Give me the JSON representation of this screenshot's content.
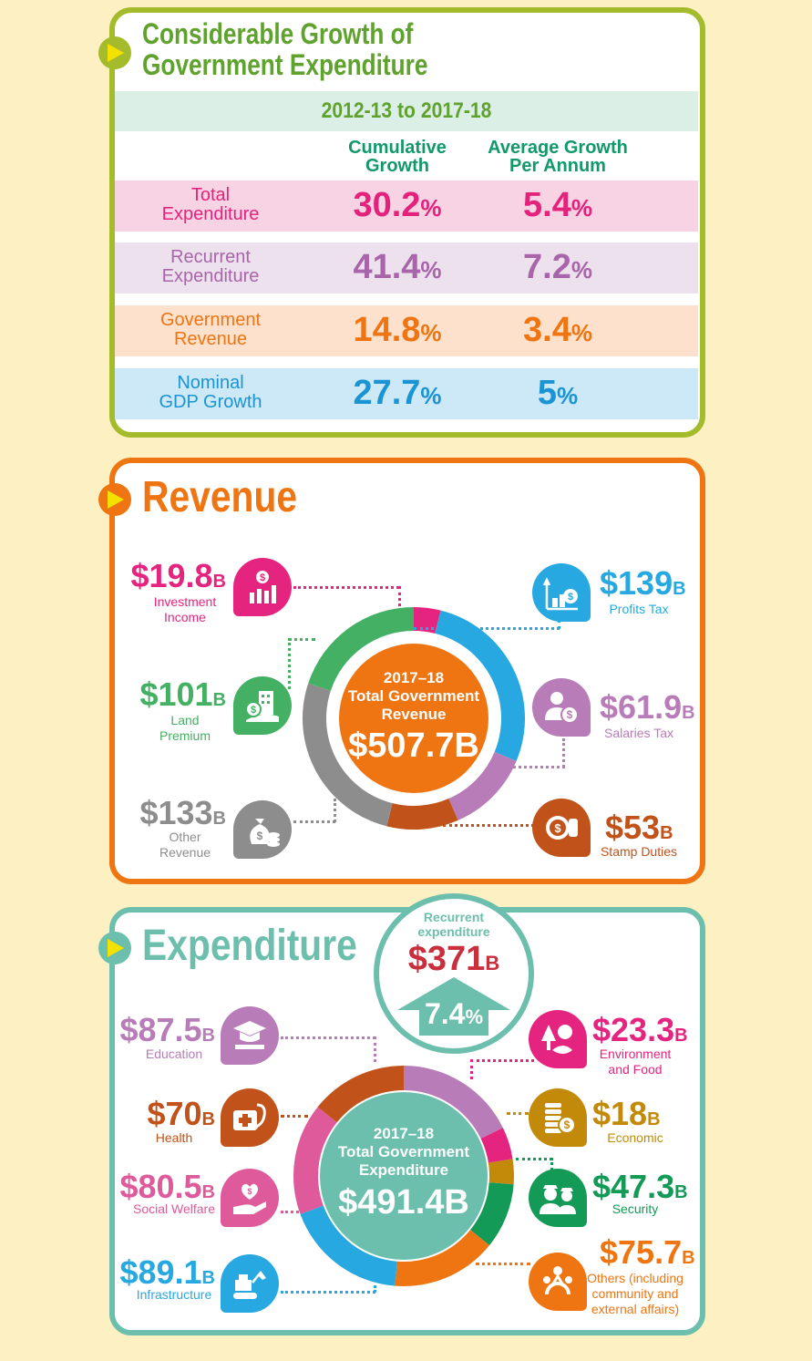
{
  "growth": {
    "title_line1": "Considerable Growth of",
    "title_line2": "Government Expenditure",
    "period": "2012-13 to 2017-18",
    "col1_line1": "Cumulative",
    "col1_line2": "Growth",
    "col2_line1": "Average Growth",
    "col2_line2": "Per Annum",
    "rows": [
      {
        "label1": "Total",
        "label2": "Expenditure",
        "cumulative": "30.2",
        "average": "5.4",
        "color": "#e3227c",
        "bg": "#f8d3e4"
      },
      {
        "label1": "Recurrent",
        "label2": "Expenditure",
        "cumulative": "41.4",
        "average": "7.2",
        "color": "#a865a9",
        "bg": "#ede1ee"
      },
      {
        "label1": "Government",
        "label2": "Revenue",
        "cumulative": "14.8",
        "average": "3.4",
        "color": "#ee7512",
        "bg": "#fde1cc"
      },
      {
        "label1": "Nominal",
        "label2": "GDP Growth",
        "cumulative": "27.7",
        "average": "5",
        "color": "#1a94d2",
        "bg": "#cde8f6"
      }
    ],
    "pct": "%"
  },
  "revenue": {
    "title": "Revenue",
    "center_line1": "2017–18",
    "center_line2": "Total Government",
    "center_line3": "Revenue",
    "center_total": "$507.7B",
    "items": [
      {
        "amount": "$19.8",
        "unit": "B",
        "label1": "Investment",
        "label2": "Income",
        "icon": "investment-icon",
        "color": "#e5247f"
      },
      {
        "amount": "$139",
        "unit": "B",
        "label1": "Profits Tax",
        "label2": "",
        "icon": "profits-tax-icon",
        "color": "#27a8e0"
      },
      {
        "amount": "$101",
        "unit": "B",
        "label1": "Land",
        "label2": "Premium",
        "icon": "land-premium-icon",
        "color": "#44b063"
      },
      {
        "amount": "$61.9",
        "unit": "B",
        "label1": "Salaries Tax",
        "label2": "",
        "icon": "salaries-tax-icon",
        "color": "#b87db8"
      },
      {
        "amount": "$133",
        "unit": "B",
        "label1": "Other",
        "label2": "Revenue",
        "icon": "money-bag-icon",
        "color": "#8d8d8d"
      },
      {
        "amount": "$53",
        "unit": "B",
        "label1": "Stamp Duties",
        "label2": "",
        "icon": "stamp-icon",
        "color": "#c1521a"
      }
    ]
  },
  "expenditure": {
    "title": "Expenditure",
    "recurrent_label1": "Recurrent",
    "recurrent_label2": "expenditure",
    "recurrent_amount": "$371",
    "recurrent_unit": "B",
    "recurrent_growth": "7.4",
    "pct": "%",
    "center_line1": "2017–18",
    "center_line2": "Total Government",
    "center_line3": "Expenditure",
    "center_total": "$491.4B",
    "items": [
      {
        "amount": "$87.5",
        "unit": "B",
        "label1": "Education",
        "label2": "",
        "label3": "",
        "icon": "graduation-cap-icon",
        "color": "#b87db8"
      },
      {
        "amount": "$23.3",
        "unit": "B",
        "label1": "Environment",
        "label2": "and Food",
        "label3": "",
        "icon": "environment-food-icon",
        "color": "#e5247f"
      },
      {
        "amount": "$70",
        "unit": "B",
        "label1": "Health",
        "label2": "",
        "label3": "",
        "icon": "medical-kit-icon",
        "color": "#c1521a"
      },
      {
        "amount": "$18",
        "unit": "B",
        "label1": "Economic",
        "label2": "",
        "label3": "",
        "icon": "coins-icon",
        "color": "#c38a0a"
      },
      {
        "amount": "$80.5",
        "unit": "B",
        "label1": "Social Welfare",
        "label2": "",
        "label3": "",
        "icon": "caring-hand-icon",
        "color": "#df5a9b"
      },
      {
        "amount": "$47.3",
        "unit": "B",
        "label1": "Security",
        "label2": "",
        "label3": "",
        "icon": "police-icon",
        "color": "#139a56"
      },
      {
        "amount": "$89.1",
        "unit": "B",
        "label1": "Infrastructure",
        "label2": "",
        "label3": "",
        "icon": "excavator-icon",
        "color": "#27a8e0"
      },
      {
        "amount": "$75.7",
        "unit": "B",
        "label1": "Others (including",
        "label2": "community and",
        "label3": "external affairs)",
        "icon": "community-icon",
        "color": "#ee7512"
      }
    ]
  },
  "chart_data": [
    {
      "type": "pie",
      "title": "2017–18 Total Government Revenue",
      "total": 507.7,
      "unit": "$B",
      "categories": [
        "Investment Income",
        "Profits Tax",
        "Salaries Tax",
        "Stamp Duties",
        "Other Revenue",
        "Land Premium"
      ],
      "values": [
        19.8,
        139,
        61.9,
        53,
        133,
        101
      ],
      "colors": [
        "#e5247f",
        "#27a8e0",
        "#b87db8",
        "#c1521a",
        "#8d8d8d",
        "#44b063"
      ]
    },
    {
      "type": "pie",
      "title": "2017–18 Total Government Expenditure",
      "total": 491.4,
      "unit": "$B",
      "categories": [
        "Education",
        "Environment and Food",
        "Economic",
        "Security",
        "Others (including community and external affairs)",
        "Infrastructure",
        "Social Welfare",
        "Health"
      ],
      "values": [
        87.5,
        23.3,
        18,
        47.3,
        75.7,
        89.1,
        80.5,
        70
      ],
      "colors": [
        "#b87db8",
        "#e5247f",
        "#c38a0a",
        "#139a56",
        "#ee7512",
        "#27a8e0",
        "#df5a9b",
        "#c1521a"
      ]
    }
  ]
}
